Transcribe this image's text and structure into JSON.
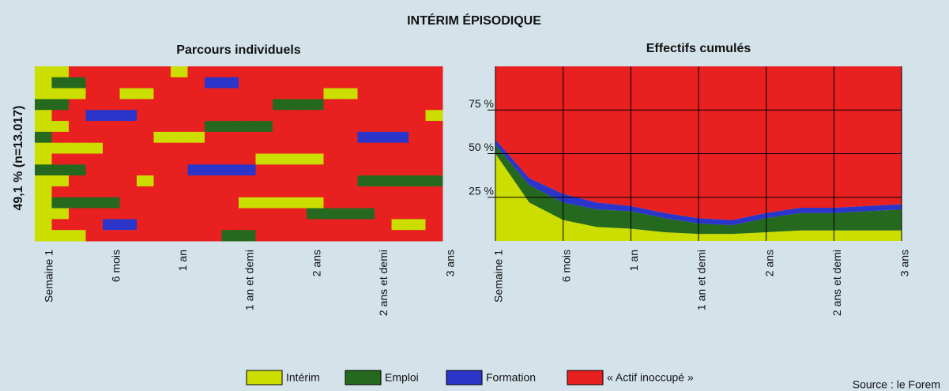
{
  "title": "INTÉRIM ÉPISODIQUE",
  "side_label": "49,1 % (n=13.017)",
  "source": "Source : le Forem",
  "chart_data": [
    {
      "type": "sequence",
      "title": "Parcours individuels",
      "categories": [
        "Semaine 1",
        "6 mois",
        "1 an",
        "1 an et demi",
        "2 ans",
        "2 ans et demi",
        "3 ans"
      ],
      "rows": [
        [
          0,
          0,
          3,
          3,
          3,
          3,
          3,
          3,
          0,
          3,
          3,
          3,
          3,
          3,
          3,
          3,
          3,
          3,
          3,
          3,
          3,
          3,
          3,
          3
        ],
        [
          0,
          1,
          1,
          3,
          3,
          3,
          3,
          3,
          3,
          3,
          2,
          2,
          3,
          3,
          3,
          3,
          3,
          3,
          3,
          3,
          3,
          3,
          3,
          3
        ],
        [
          0,
          0,
          0,
          3,
          3,
          0,
          0,
          3,
          3,
          3,
          3,
          3,
          3,
          3,
          3,
          3,
          3,
          0,
          0,
          3,
          3,
          3,
          3,
          3
        ],
        [
          1,
          1,
          3,
          3,
          3,
          3,
          3,
          3,
          3,
          3,
          3,
          3,
          3,
          3,
          1,
          1,
          1,
          3,
          3,
          3,
          3,
          3,
          3,
          3
        ],
        [
          0,
          3,
          3,
          2,
          2,
          2,
          3,
          3,
          3,
          3,
          3,
          3,
          3,
          3,
          3,
          3,
          3,
          3,
          3,
          3,
          3,
          3,
          3,
          0
        ],
        [
          0,
          0,
          3,
          3,
          3,
          3,
          3,
          3,
          3,
          3,
          1,
          1,
          1,
          1,
          3,
          3,
          3,
          3,
          3,
          3,
          3,
          3,
          3,
          3
        ],
        [
          1,
          3,
          3,
          3,
          3,
          3,
          3,
          0,
          0,
          0,
          3,
          3,
          3,
          3,
          3,
          3,
          3,
          3,
          3,
          2,
          2,
          2,
          3,
          3
        ],
        [
          0,
          0,
          0,
          0,
          3,
          3,
          3,
          3,
          3,
          3,
          3,
          3,
          3,
          3,
          3,
          3,
          3,
          3,
          3,
          3,
          3,
          3,
          3,
          3
        ],
        [
          0,
          3,
          3,
          3,
          3,
          3,
          3,
          3,
          3,
          3,
          3,
          3,
          3,
          0,
          0,
          0,
          0,
          3,
          3,
          3,
          3,
          3,
          3,
          3
        ],
        [
          1,
          1,
          1,
          3,
          3,
          3,
          3,
          3,
          3,
          2,
          2,
          2,
          2,
          3,
          3,
          3,
          3,
          3,
          3,
          3,
          3,
          3,
          3,
          3
        ],
        [
          0,
          0,
          3,
          3,
          3,
          3,
          0,
          3,
          3,
          3,
          3,
          3,
          3,
          3,
          3,
          3,
          3,
          3,
          3,
          1,
          1,
          1,
          1,
          1
        ],
        [
          0,
          3,
          3,
          3,
          3,
          3,
          3,
          3,
          3,
          3,
          3,
          3,
          3,
          3,
          3,
          3,
          3,
          3,
          3,
          3,
          3,
          3,
          3,
          3
        ],
        [
          0,
          1,
          1,
          1,
          1,
          3,
          3,
          3,
          3,
          3,
          3,
          3,
          0,
          0,
          0,
          0,
          0,
          3,
          3,
          3,
          3,
          3,
          3,
          3
        ],
        [
          0,
          0,
          3,
          3,
          3,
          3,
          3,
          3,
          3,
          3,
          3,
          3,
          3,
          3,
          3,
          3,
          1,
          1,
          1,
          1,
          3,
          3,
          3,
          3
        ],
        [
          0,
          3,
          3,
          3,
          2,
          2,
          3,
          3,
          3,
          3,
          3,
          3,
          3,
          3,
          3,
          3,
          3,
          3,
          3,
          3,
          3,
          0,
          0,
          3
        ],
        [
          0,
          0,
          0,
          3,
          3,
          3,
          3,
          3,
          3,
          3,
          3,
          1,
          1,
          3,
          3,
          3,
          3,
          3,
          3,
          3,
          3,
          3,
          3,
          3
        ]
      ]
    },
    {
      "type": "area",
      "title": "Effectifs cumulés",
      "categories": [
        "Semaine 1",
        null,
        "6 mois",
        null,
        "1 an",
        null,
        "1 an et demi",
        null,
        "2 ans",
        null,
        "2 ans et demi",
        null,
        "3 ans"
      ],
      "series": [
        {
          "name": "Intérim",
          "color": "#ccdd00",
          "values": [
            50,
            22,
            12,
            8,
            7,
            5,
            4,
            4,
            5,
            6,
            6,
            6,
            6
          ]
        },
        {
          "name": "Emploi",
          "color": "#25691e",
          "values": [
            5,
            10,
            10,
            10,
            10,
            8,
            6,
            5,
            8,
            10,
            10,
            11,
            12
          ]
        },
        {
          "name": "Formation",
          "color": "#2b35c9",
          "values": [
            3,
            4,
            5,
            4,
            3,
            3,
            3,
            3,
            3,
            3,
            3,
            3,
            3
          ]
        },
        {
          "name": "« Actif inoccupé »",
          "color": "#e82020",
          "values": [
            42,
            64,
            73,
            78,
            80,
            84,
            87,
            88,
            84,
            81,
            81,
            80,
            79
          ]
        }
      ],
      "ylim": [
        0,
        100
      ],
      "yticks": [
        {
          "value": 25,
          "label": "25 %"
        },
        {
          "value": 50,
          "label": "50 %"
        },
        {
          "value": 75,
          "label": "75 %"
        }
      ],
      "grid": true
    }
  ]
}
